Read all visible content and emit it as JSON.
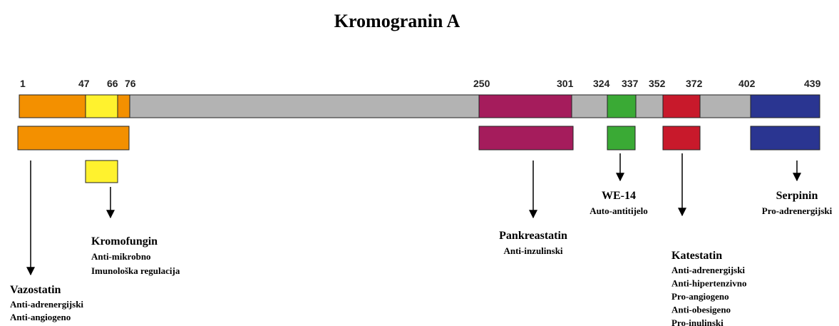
{
  "title": "Kromogranin A",
  "positions": [
    "1",
    "47",
    "66",
    "76",
    "250",
    "301",
    "324",
    "337",
    "352",
    "372",
    "402",
    "439"
  ],
  "peptides": [
    {
      "name": "Vazostatin",
      "functions": [
        "Anti-adrenergijski",
        "Anti-angiogeno"
      ]
    },
    {
      "name": "Kromofungin",
      "functions": [
        "Anti-mikrobno",
        "Imunološka regulacija"
      ]
    },
    {
      "name": "Pankreastatin",
      "functions": [
        "Anti-inzulinski"
      ]
    },
    {
      "name": "WE-14",
      "functions": [
        "Auto-antitijelo"
      ]
    },
    {
      "name": "Katestatin",
      "functions": [
        "Anti-adrenergijski",
        "Anti-hipertenzivno",
        "Pro-angiogeno",
        "Anti-obesigeno",
        "Pro-inulinski"
      ]
    },
    {
      "name": "Serpinin",
      "functions": [
        "Pro-adrenergijski"
      ]
    }
  ]
}
